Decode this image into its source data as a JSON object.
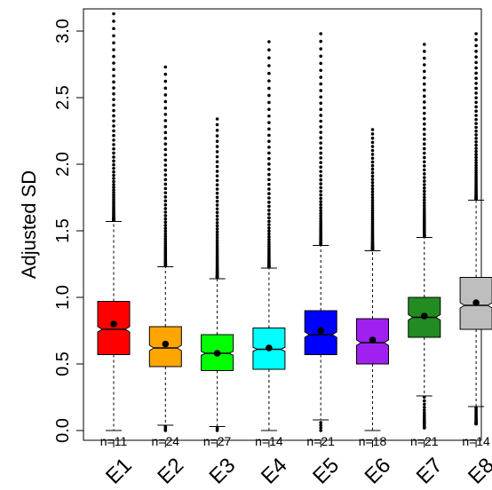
{
  "chart_data": {
    "type": "boxplot",
    "title": "",
    "xlabel": "",
    "ylabel": "Adjusted SD",
    "ylim": [
      -0.05,
      3.2
    ],
    "yticks": [
      0.0,
      0.5,
      1.0,
      1.5,
      2.0,
      2.5,
      3.0
    ],
    "ytick_labels": [
      "0.0",
      "0.5",
      "1.0",
      "1.5",
      "2.0",
      "2.5",
      "3.0"
    ],
    "grid": false,
    "categories": [
      "E1",
      "E2",
      "E3",
      "E4",
      "E5",
      "E6",
      "E7",
      "E8"
    ],
    "boxes": [
      {
        "label": "E1",
        "color": "#ff0000",
        "whisker_low": 0.0,
        "q1": 0.57,
        "median": 0.76,
        "q3": 0.97,
        "whisker_high": 1.57,
        "notch": [
          0.74,
          0.78
        ],
        "mean": 0.8,
        "outliers_low": [],
        "outliers_high_range": [
          1.58,
          3.13
        ],
        "n_text": "n=11"
      },
      {
        "label": "E2",
        "color": "#ffa500",
        "whisker_low": 0.04,
        "q1": 0.48,
        "median": 0.62,
        "q3": 0.78,
        "whisker_high": 1.23,
        "notch": [
          0.6,
          0.64
        ],
        "mean": 0.65,
        "outliers_low": [
          0.0,
          0.01,
          0.02,
          0.03
        ],
        "outliers_high_range": [
          1.24,
          2.73
        ],
        "n_text": "n=24"
      },
      {
        "label": "E3",
        "color": "#00ff00",
        "whisker_low": 0.03,
        "q1": 0.45,
        "median": 0.58,
        "q3": 0.72,
        "whisker_high": 1.14,
        "notch": [
          0.565,
          0.595
        ],
        "mean": 0.58,
        "outliers_low": [
          0.0,
          0.01,
          0.02
        ],
        "outliers_high_range": [
          1.15,
          2.34
        ],
        "n_text": "n=27"
      },
      {
        "label": "E4",
        "color": "#00ffff",
        "whisker_low": 0.0,
        "q1": 0.46,
        "median": 0.61,
        "q3": 0.77,
        "whisker_high": 1.22,
        "notch": [
          0.595,
          0.625
        ],
        "mean": 0.62,
        "outliers_low": [],
        "outliers_high_range": [
          1.23,
          2.92
        ],
        "n_text": "n=14"
      },
      {
        "label": "E5",
        "color": "#0000ff",
        "whisker_low": 0.08,
        "q1": 0.57,
        "median": 0.72,
        "q3": 0.9,
        "whisker_high": 1.39,
        "notch": [
          0.7,
          0.74
        ],
        "mean": 0.75,
        "outliers_low": [
          0.0,
          0.02,
          0.04,
          0.06
        ],
        "outliers_high_range": [
          1.4,
          2.98
        ],
        "n_text": "n=21"
      },
      {
        "label": "E6",
        "color": "#a020f0",
        "whisker_low": 0.0,
        "q1": 0.5,
        "median": 0.66,
        "q3": 0.84,
        "whisker_high": 1.35,
        "notch": [
          0.64,
          0.68
        ],
        "mean": 0.68,
        "outliers_low": [],
        "outliers_high_range": [
          1.36,
          2.26
        ],
        "n_text": "n=18"
      },
      {
        "label": "E7",
        "color": "#228b22",
        "whisker_low": 0.26,
        "q1": 0.7,
        "median": 0.85,
        "q3": 1.0,
        "whisker_high": 1.45,
        "notch": [
          0.83,
          0.87
        ],
        "mean": 0.86,
        "outliers_low_range": [
          0.02,
          0.25
        ],
        "outliers_high_range": [
          1.46,
          2.9
        ],
        "n_text": "n=21"
      },
      {
        "label": "E8",
        "color": "#bebebe",
        "whisker_low": 0.18,
        "q1": 0.76,
        "median": 0.94,
        "q3": 1.15,
        "whisker_high": 1.73,
        "notch": [
          0.92,
          0.96
        ],
        "mean": 0.96,
        "outliers_low_range": [
          0.05,
          0.17
        ],
        "outliers_high_range": [
          1.74,
          2.98
        ],
        "n_text": "n=14"
      }
    ]
  }
}
